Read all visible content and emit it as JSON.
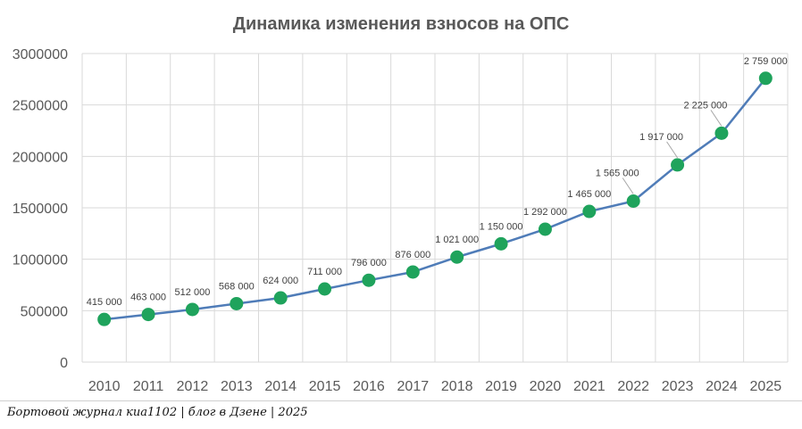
{
  "chart_data": {
    "type": "line",
    "title": "Динамика изменения взносов на ОПС",
    "xlabel": "",
    "ylabel": "",
    "categories": [
      "2010",
      "2011",
      "2012",
      "2013",
      "2014",
      "2015",
      "2016",
      "2017",
      "2018",
      "2019",
      "2020",
      "2021",
      "2022",
      "2023",
      "2024",
      "2025"
    ],
    "values": [
      415000,
      463000,
      512000,
      568000,
      624000,
      711000,
      796000,
      876000,
      1021000,
      1150000,
      1292000,
      1465000,
      1565000,
      1917000,
      2225000,
      2759000
    ],
    "data_labels": [
      "415 000",
      "463 000",
      "512 000",
      "568 000",
      "624 000",
      "711 000",
      "796 000",
      "876 000",
      "1 021 000",
      "1 150 000",
      "1 292 000",
      "1 465 000",
      "1 565 000",
      "1 917 000",
      "2 225 000",
      "2 759 000"
    ],
    "yticks": [
      0,
      500000,
      1000000,
      1500000,
      2000000,
      2500000,
      3000000
    ],
    "ytick_labels": [
      "0",
      "500000",
      "1000000",
      "1500000",
      "2000000",
      "2500000",
      "3000000"
    ],
    "ylim": [
      0,
      3000000
    ],
    "grid": true,
    "colors": {
      "line": "#4f7cb8",
      "marker": "#1fa35c",
      "grid": "#d9d9d9",
      "text": "#595959"
    }
  },
  "footer": {
    "caption": "Бортовой журнал киа1102 | блог в Дзене | 2025"
  }
}
